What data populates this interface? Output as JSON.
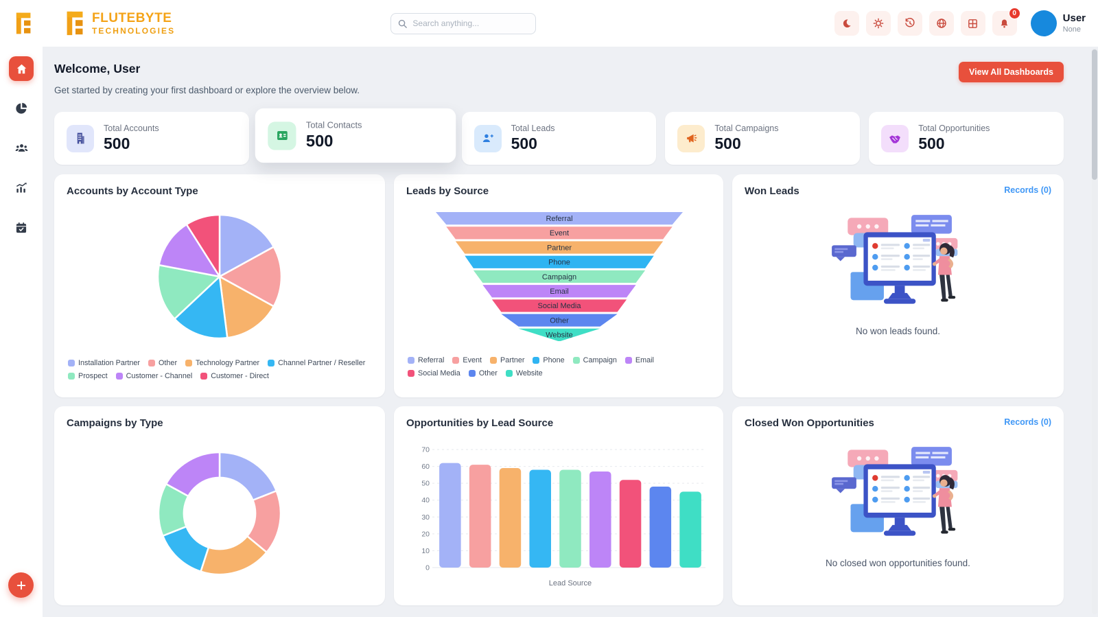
{
  "theme": {
    "accent": "#e8503c",
    "link_blue": "#3f97f6",
    "logo_orange": "#f4a317",
    "header_icon_red": "#c94b3e",
    "avatar_blue": "#1789dd"
  },
  "brand": {
    "line1": "FLUTEBYTE",
    "line2": "TECHNOLOGIES"
  },
  "header": {
    "search_placeholder": "Search anything...",
    "notifications_badge": "0",
    "actions": [
      "dark-mode",
      "settings",
      "history",
      "language",
      "apps-grid",
      "notifications"
    ],
    "user": {
      "name": "User",
      "subtitle": "None"
    }
  },
  "sidebar": {
    "items": [
      "home",
      "dashboards",
      "customers",
      "analytics",
      "calendar"
    ],
    "active": "home"
  },
  "welcome": {
    "greeting": "Welcome,",
    "user_name": "User",
    "subtitle": "Get started by creating your first dashboard or explore the overview below.",
    "cta_label": "View All Dashboards"
  },
  "stats": [
    {
      "label": "Total Accounts",
      "value": "500",
      "icon": "building",
      "tile_bg": "#e1e6fb",
      "icon_color": "#46519e"
    },
    {
      "label": "Total Contacts",
      "value": "500",
      "icon": "contact-card",
      "tile_bg": "#d5f6e3",
      "icon_color": "#28a55f",
      "elevated": true
    },
    {
      "label": "Total Leads",
      "value": "500",
      "icon": "user-plus",
      "tile_bg": "#d9eafc",
      "icon_color": "#2e7fe0"
    },
    {
      "label": "Total Campaigns",
      "value": "500",
      "icon": "megaphone",
      "tile_bg": "#fdeccd",
      "icon_color": "#e0641f"
    },
    {
      "label": "Total Opportunities",
      "value": "500",
      "icon": "handshake",
      "tile_bg": "#f3defb",
      "icon_color": "#a435d8"
    }
  ],
  "cards": {
    "won_leads": {
      "title": "Won Leads",
      "records_label": "Records (0)",
      "empty_text": "No won leads found."
    },
    "closed_won": {
      "title": "Closed Won Opportunities",
      "records_label": "Records (0)",
      "empty_text": "No closed won opportunities found."
    }
  },
  "chart_data": [
    {
      "type": "pie",
      "title": "Accounts by Account Type",
      "labels": [
        "Installation Partner",
        "Other",
        "Technology Partner",
        "Channel Partner / Reseller",
        "Prospect",
        "Customer - Channel",
        "Customer - Direct"
      ],
      "values": [
        17,
        16,
        15,
        15,
        15,
        13,
        9
      ],
      "colors": [
        "#a3b2f7",
        "#f7a0a0",
        "#f7b26b",
        "#35b7f3",
        "#8fe9c0",
        "#bd85f7",
        "#f2527a"
      ],
      "legend_position": "bottom"
    },
    {
      "type": "funnel",
      "title": "Leads by Source",
      "labels": [
        "Referral",
        "Event",
        "Partner",
        "Phone",
        "Campaign",
        "Email",
        "Social Media",
        "Other",
        "Website"
      ],
      "values": [
        100,
        91.5,
        84,
        76.5,
        69.5,
        62,
        54.5,
        47,
        33
      ],
      "colors": [
        "#a3b2f7",
        "#f7a0a0",
        "#f7b26b",
        "#2fb4f2",
        "#8fe9c0",
        "#bd85f7",
        "#f2527a",
        "#5c86ef",
        "#3fdec5"
      ],
      "legend_position": "bottom"
    },
    {
      "type": "pie",
      "donut": true,
      "title": "Campaigns by Type",
      "values": [
        19,
        17,
        19,
        14,
        14,
        17
      ],
      "colors": [
        "#a3b2f7",
        "#f7a0a0",
        "#f7b26b",
        "#35b7f3",
        "#8fe9c0",
        "#bd85f7"
      ],
      "legend_position": "none"
    },
    {
      "type": "bar",
      "title": "Opportunities by Lead Source",
      "values": [
        62,
        61,
        59,
        58,
        58,
        57,
        52,
        48,
        45
      ],
      "colors": [
        "#a3b2f7",
        "#f7a0a0",
        "#f7b26b",
        "#35b7f3",
        "#8fe9c0",
        "#bd85f7",
        "#f2527a",
        "#5c86ef",
        "#3fdec5"
      ],
      "xlabel": "Lead Source",
      "ylim": [
        0,
        70
      ],
      "ytick_step": 10,
      "grid": "horizontal-dashed"
    }
  ]
}
